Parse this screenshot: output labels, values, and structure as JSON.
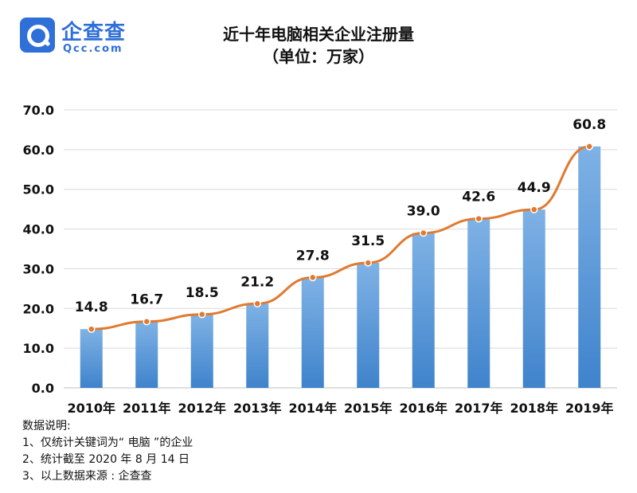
{
  "logo": {
    "name": "企查查",
    "domain": "Qcc.com"
  },
  "chart_data": {
    "type": "bar",
    "title": "近十年电脑相关企业注册量",
    "subtitle": "（单位：万家）",
    "categories": [
      "2010年",
      "2011年",
      "2012年",
      "2013年",
      "2014年",
      "2015年",
      "2016年",
      "2017年",
      "2018年",
      "2019年"
    ],
    "values": [
      14.8,
      16.7,
      18.5,
      21.2,
      27.8,
      31.5,
      39.0,
      42.6,
      44.9,
      60.8
    ],
    "overlay_line": true,
    "ylim": [
      0,
      70
    ],
    "yticks": [
      "0.0",
      "10.0",
      "20.0",
      "30.0",
      "40.0",
      "50.0",
      "60.0",
      "70.0"
    ],
    "data_labels": [
      "14.8",
      "16.7",
      "18.5",
      "21.2",
      "27.8",
      "31.5",
      "39.0",
      "42.6",
      "44.9",
      "60.8"
    ],
    "grid": true,
    "colors": {
      "bar_top": "#7fb2e5",
      "bar_bottom": "#3f83cc",
      "line": "#e07a30",
      "marker": "#e07a30",
      "grid": "#d9d9d9"
    }
  },
  "notes": {
    "heading": "数据说明:",
    "items": [
      "1、仅统计关键词为“ 电脑 ”的企业",
      "2、统计截至 2020 年 8 月 14 日",
      "3、以上数据来源 : 企查查"
    ]
  }
}
